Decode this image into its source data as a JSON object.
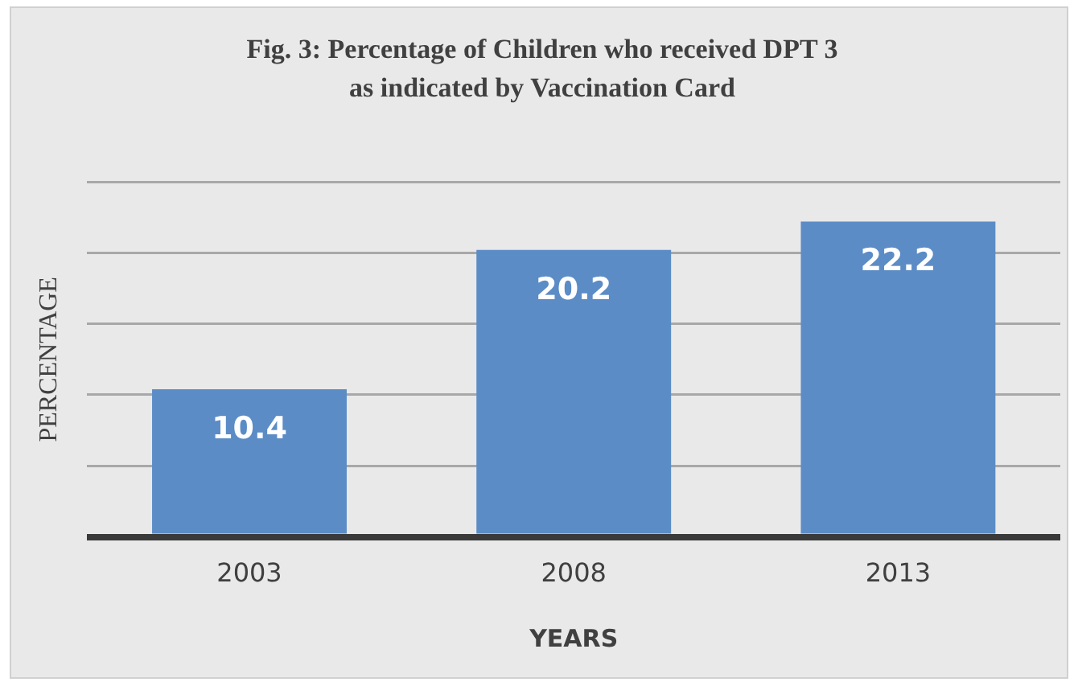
{
  "chart_data": {
    "type": "bar",
    "title": "Fig. 3: Percentage of Children who received DPT 3 as indicated by Vaccination Card",
    "xlabel": "YEARS",
    "ylabel": "PERCENTAGE",
    "categories": [
      "2003",
      "2008",
      "2013"
    ],
    "values": [
      10.4,
      20.2,
      22.2
    ],
    "color": "#5b8cc6",
    "tick_labels": "x",
    "grid": "y",
    "data_labels": true,
    "legend": false
  }
}
